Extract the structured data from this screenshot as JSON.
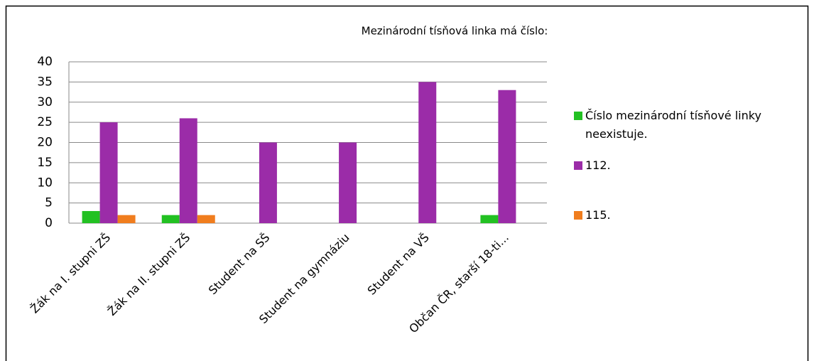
{
  "chart_data": {
    "type": "bar",
    "title": "Mezinárodní tísňová linka má číslo:",
    "categories": [
      "Žák na I. stupni ZŠ",
      "Žák na II. stupni ZŠ",
      "Student na SŠ",
      "Student na gymnáziu",
      "Student na VŠ",
      "Občan ČR, starší 18-ti..."
    ],
    "series": [
      {
        "name": "Číslo mezinárodní tísňové linky neexistuje.",
        "color": "#22c122",
        "values": [
          3,
          2,
          0,
          0,
          0,
          2
        ]
      },
      {
        "name": "112.",
        "color": "#9b2ca8",
        "values": [
          25,
          26,
          20,
          20,
          35,
          33
        ]
      },
      {
        "name": "115.",
        "color": "#f07d1e",
        "values": [
          2,
          2,
          0,
          0,
          0,
          0
        ]
      }
    ],
    "ylim": [
      0,
      40
    ],
    "yticks": [
      0,
      5,
      10,
      15,
      20,
      25,
      30,
      35,
      40
    ],
    "grid": true,
    "legend": "right"
  }
}
